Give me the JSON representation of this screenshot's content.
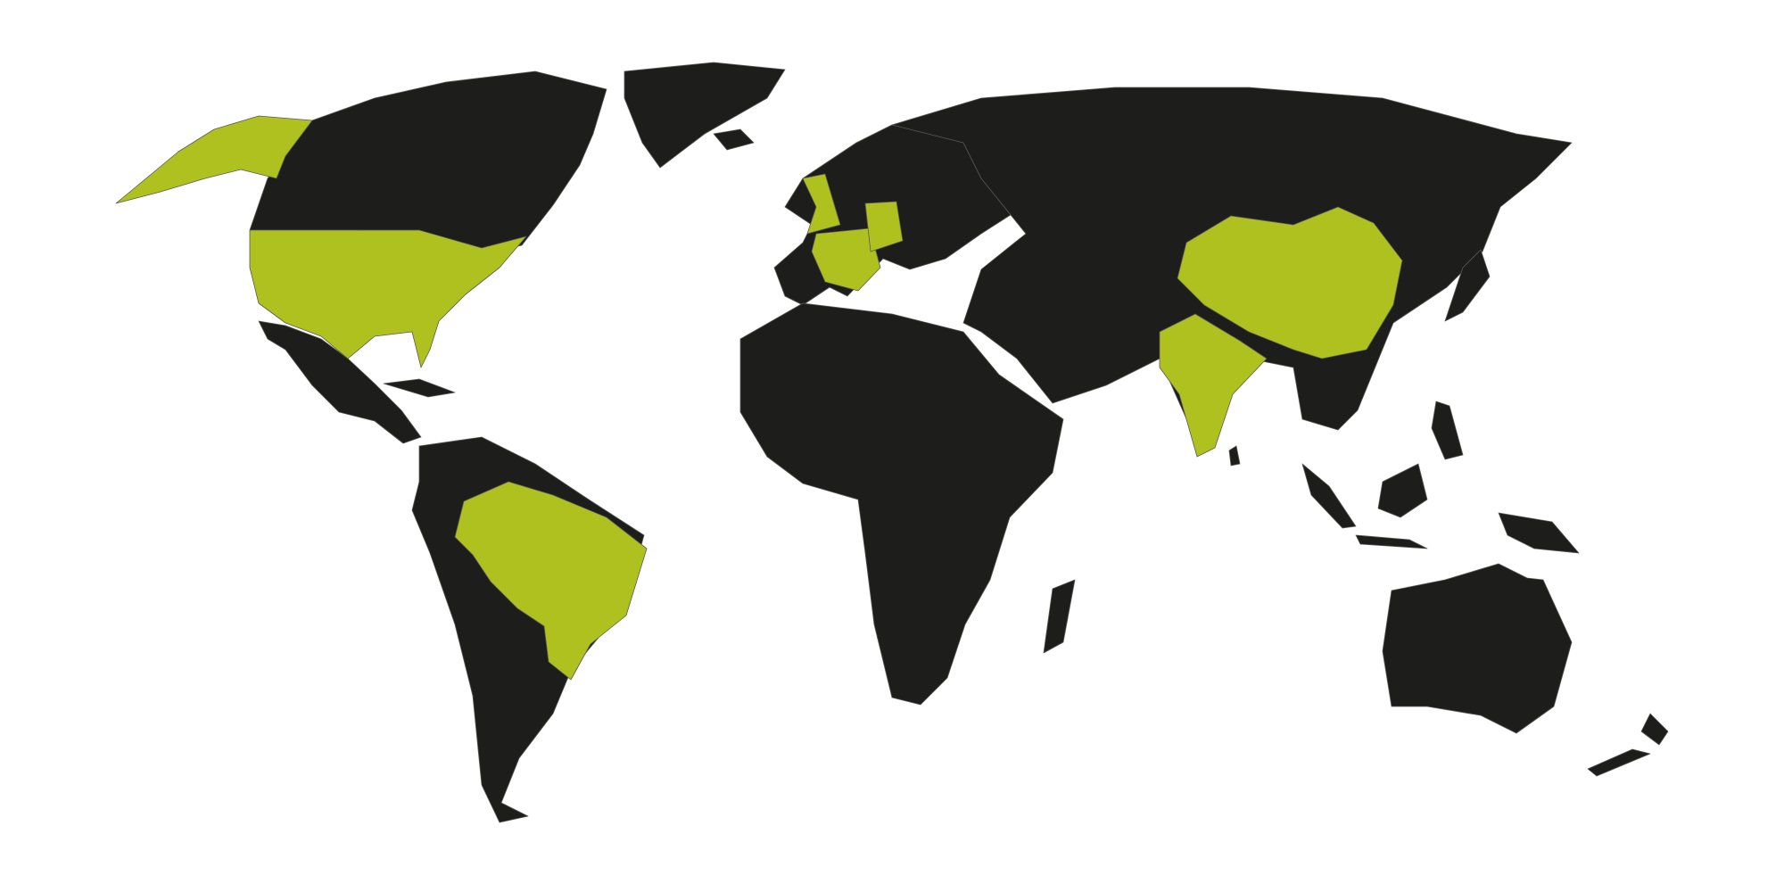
{
  "map": {
    "colors": {
      "background": "#ffffff",
      "land": "#1d1d1b",
      "highlight": "#aec11f",
      "border": "#5a5a58"
    }
  }
}
